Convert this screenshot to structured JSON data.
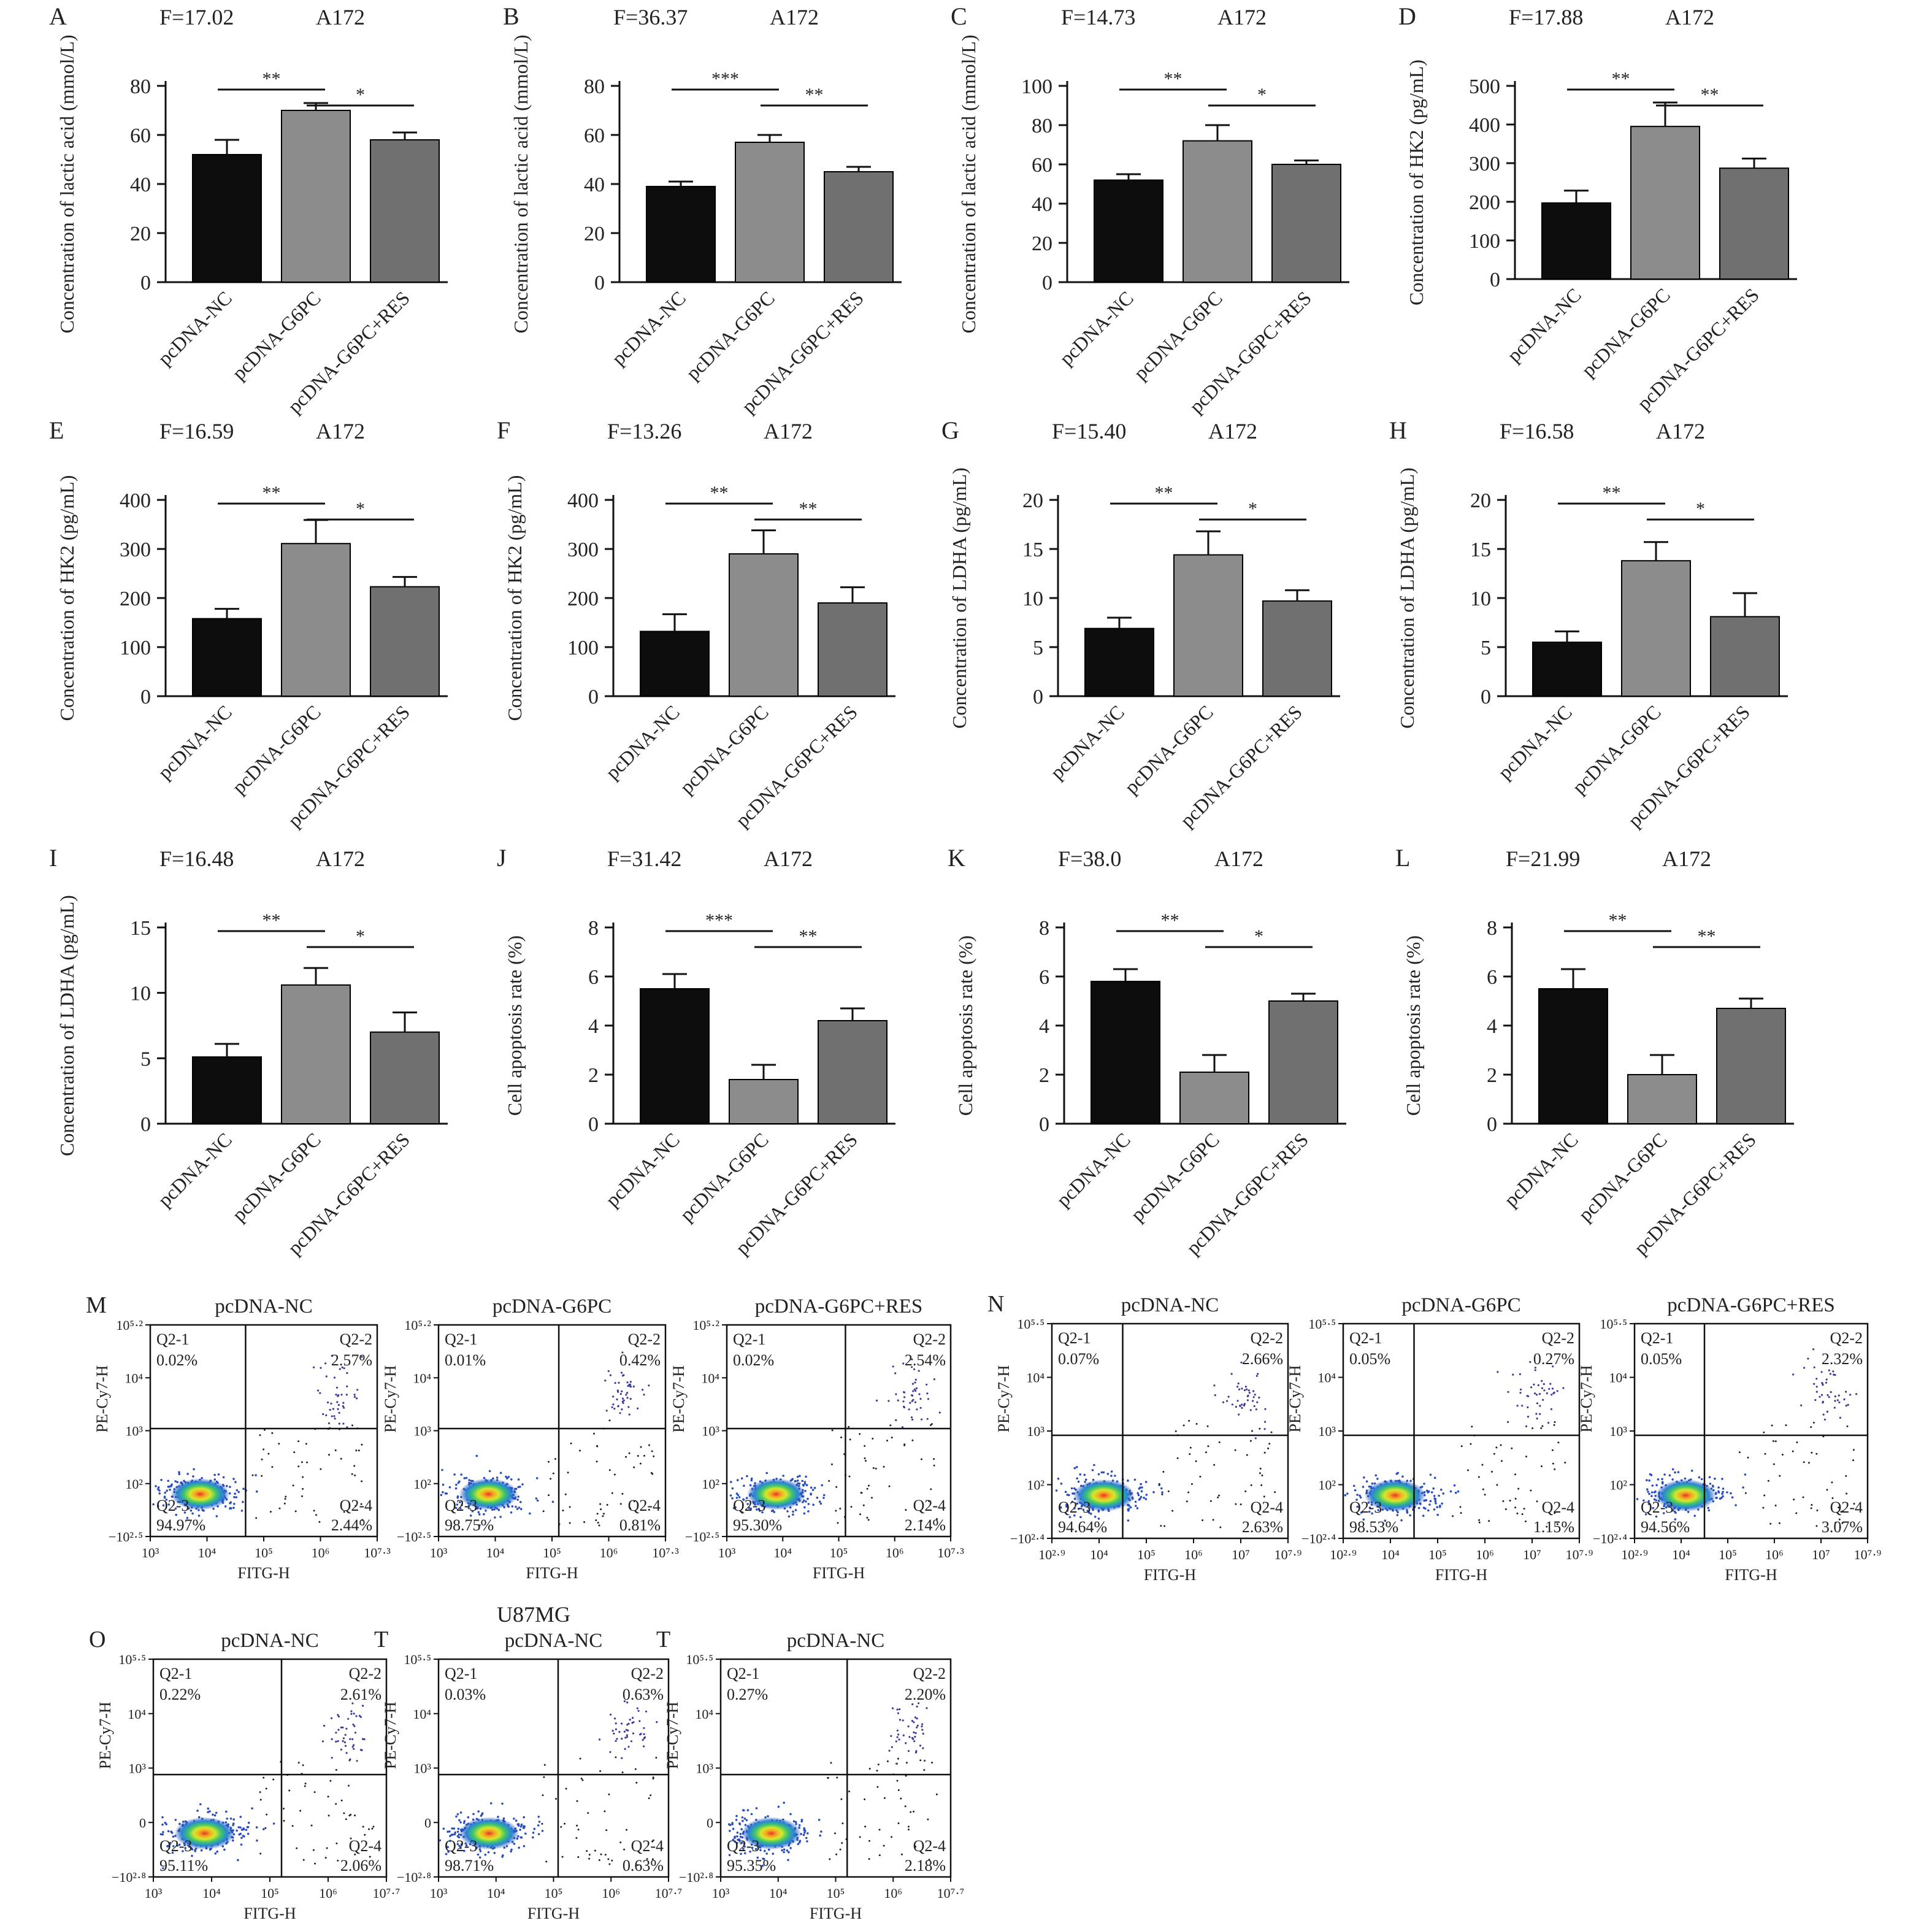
{
  "figure_labels": {
    "u87_title": "U87MG"
  },
  "bar_panels": [
    {
      "letter": "A",
      "stat": "F=17.02",
      "cell": "A172",
      "ylabel": "Concentration of lactic acid (mmol/L)",
      "yticks": [
        0,
        20,
        40,
        60,
        80
      ],
      "ylim": [
        0,
        80
      ],
      "categories": [
        "pcDNA-NC",
        "pcDNA-G6PC",
        "pcDNA-G6PC+RES"
      ],
      "values": [
        52,
        70,
        58
      ],
      "errors": [
        6,
        3,
        3
      ],
      "sig": [
        {
          "from": 0,
          "to": 1,
          "label": "**"
        },
        {
          "from": 1,
          "to": 2,
          "label": "*"
        }
      ]
    },
    {
      "letter": "B",
      "stat": "F=36.37",
      "cell": "A172",
      "ylabel": "Concentration of lactic acid (mmol/L)",
      "yticks": [
        0,
        20,
        40,
        60,
        80
      ],
      "ylim": [
        0,
        80
      ],
      "categories": [
        "pcDNA-NC",
        "pcDNA-G6PC",
        "pcDNA-G6PC+RES"
      ],
      "values": [
        39,
        57,
        45
      ],
      "errors": [
        2,
        3,
        2
      ],
      "sig": [
        {
          "from": 0,
          "to": 1,
          "label": "***"
        },
        {
          "from": 1,
          "to": 2,
          "label": "**"
        }
      ]
    },
    {
      "letter": "C",
      "stat": "F=14.73",
      "cell": "A172",
      "ylabel": "Concentration of lactic acid (mmol/L)",
      "yticks": [
        0,
        20,
        40,
        60,
        80,
        100
      ],
      "ylim": [
        0,
        100
      ],
      "categories": [
        "pcDNA-NC",
        "pcDNA-G6PC",
        "pcDNA-G6PC+RES"
      ],
      "values": [
        52,
        72,
        60
      ],
      "errors": [
        3,
        8,
        2
      ],
      "sig": [
        {
          "from": 0,
          "to": 1,
          "label": "**"
        },
        {
          "from": 1,
          "to": 2,
          "label": "*"
        }
      ]
    },
    {
      "letter": "D",
      "stat": "F=17.88",
      "cell": "A172",
      "ylabel": "Concentration of HK2 (pg/mL)",
      "yticks": [
        0,
        100,
        200,
        300,
        400,
        500
      ],
      "ylim": [
        0,
        500
      ],
      "categories": [
        "pcDNA-NC",
        "pcDNA-G6PC",
        "pcDNA-G6PC+RES"
      ],
      "values": [
        197,
        395,
        287
      ],
      "errors": [
        32,
        62,
        25
      ],
      "sig": [
        {
          "from": 0,
          "to": 1,
          "label": "**"
        },
        {
          "from": 1,
          "to": 2,
          "label": "**"
        }
      ]
    },
    {
      "letter": "E",
      "stat": "F=16.59",
      "cell": "A172",
      "ylabel": "Concentration of HK2 (pg/mL)",
      "yticks": [
        0,
        100,
        200,
        300,
        400
      ],
      "ylim": [
        0,
        400
      ],
      "categories": [
        "pcDNA-NC",
        "pcDNA-G6PC",
        "pcDNA-G6PC+RES"
      ],
      "values": [
        158,
        311,
        223
      ],
      "errors": [
        20,
        48,
        20
      ],
      "sig": [
        {
          "from": 0,
          "to": 1,
          "label": "**"
        },
        {
          "from": 1,
          "to": 2,
          "label": "*"
        }
      ]
    },
    {
      "letter": "F",
      "stat": "F=13.26",
      "cell": "A172",
      "ylabel": "Concentration of HK2 (pg/mL)",
      "yticks": [
        0,
        100,
        200,
        300,
        400
      ],
      "ylim": [
        0,
        400
      ],
      "categories": [
        "pcDNA-NC",
        "pcDNA-G6PC",
        "pcDNA-G6PC+RES"
      ],
      "values": [
        132,
        290,
        190
      ],
      "errors": [
        35,
        48,
        32
      ],
      "sig": [
        {
          "from": 0,
          "to": 1,
          "label": "**"
        },
        {
          "from": 1,
          "to": 2,
          "label": "**"
        }
      ]
    },
    {
      "letter": "G",
      "stat": "F=15.40",
      "cell": "A172",
      "ylabel": "Concentration of LDHA (pg/mL)",
      "yticks": [
        0,
        5,
        10,
        15,
        20
      ],
      "ylim": [
        0,
        20
      ],
      "categories": [
        "pcDNA-NC",
        "pcDNA-G6PC",
        "pcDNA-G6PC+RES"
      ],
      "values": [
        6.9,
        14.4,
        9.7
      ],
      "errors": [
        1.1,
        2.4,
        1.1
      ],
      "sig": [
        {
          "from": 0,
          "to": 1,
          "label": "**"
        },
        {
          "from": 1,
          "to": 2,
          "label": "*"
        }
      ]
    },
    {
      "letter": "H",
      "stat": "F=16.58",
      "cell": "A172",
      "ylabel": "Concentration of LDHA (pg/mL)",
      "yticks": [
        0,
        5,
        10,
        15,
        20
      ],
      "ylim": [
        0,
        20
      ],
      "categories": [
        "pcDNA-NC",
        "pcDNA-G6PC",
        "pcDNA-G6PC+RES"
      ],
      "values": [
        5.5,
        13.8,
        8.1
      ],
      "errors": [
        1.1,
        1.9,
        2.4
      ],
      "sig": [
        {
          "from": 0,
          "to": 1,
          "label": "**"
        },
        {
          "from": 1,
          "to": 2,
          "label": "*"
        }
      ]
    },
    {
      "letter": "I",
      "stat": "F=16.48",
      "cell": "A172",
      "ylabel": "Concentration of LDHA (pg/mL)",
      "yticks": [
        0,
        5,
        10,
        15
      ],
      "ylim": [
        0,
        15
      ],
      "categories": [
        "pcDNA-NC",
        "pcDNA-G6PC",
        "pcDNA-G6PC+RES"
      ],
      "values": [
        5.1,
        10.6,
        7.0
      ],
      "errors": [
        1.0,
        1.3,
        1.5
      ],
      "sig": [
        {
          "from": 0,
          "to": 1,
          "label": "**"
        },
        {
          "from": 1,
          "to": 2,
          "label": "*"
        }
      ]
    },
    {
      "letter": "J",
      "stat": "F=31.42",
      "cell": "A172",
      "ylabel": "Cell apoptosis rate (%)",
      "yticks": [
        0,
        2,
        4,
        6,
        8
      ],
      "ylim": [
        0,
        8
      ],
      "categories": [
        "pcDNA-NC",
        "pcDNA-G6PC",
        "pcDNA-G6PC+RES"
      ],
      "values": [
        5.5,
        1.8,
        4.2
      ],
      "errors": [
        0.6,
        0.6,
        0.5
      ],
      "sig": [
        {
          "from": 0,
          "to": 1,
          "label": "***"
        },
        {
          "from": 1,
          "to": 2,
          "label": "**"
        }
      ]
    },
    {
      "letter": "K",
      "stat": "F=38.0",
      "cell": "A172",
      "ylabel": "Cell apoptosis rate (%)",
      "yticks": [
        0,
        2,
        4,
        6,
        8
      ],
      "ylim": [
        0,
        8
      ],
      "categories": [
        "pcDNA-NC",
        "pcDNA-G6PC",
        "pcDNA-G6PC+RES"
      ],
      "values": [
        5.8,
        2.1,
        5.0
      ],
      "errors": [
        0.5,
        0.7,
        0.3
      ],
      "sig": [
        {
          "from": 0,
          "to": 1,
          "label": "**"
        },
        {
          "from": 1,
          "to": 2,
          "label": "*"
        }
      ]
    },
    {
      "letter": "L",
      "stat": "F=21.99",
      "cell": "A172",
      "ylabel": "Cell apoptosis rate (%)",
      "yticks": [
        0,
        2,
        4,
        6,
        8
      ],
      "ylim": [
        0,
        8
      ],
      "categories": [
        "pcDNA-NC",
        "pcDNA-G6PC",
        "pcDNA-G6PC+RES"
      ],
      "values": [
        5.5,
        2.0,
        4.7
      ],
      "errors": [
        0.8,
        0.8,
        0.4
      ],
      "sig": [
        {
          "from": 0,
          "to": 1,
          "label": "**"
        },
        {
          "from": 1,
          "to": 2,
          "label": "**"
        }
      ]
    }
  ],
  "flow_panels": [
    {
      "letter": "M",
      "title": "pcDNA-NC",
      "ylabel": "PE-Cy7-H",
      "xlabel": "FITG-H",
      "xticks": [
        "10³",
        "10⁴",
        "10⁵",
        "10⁶",
        "10⁷·³"
      ],
      "yticks": [
        "10⁵·²",
        "10⁴",
        "10³",
        "10²",
        "−10²·⁵"
      ],
      "quadrants": {
        "q1_label": "Q2-1",
        "q1": "0.02%",
        "q2_label": "Q2-2",
        "q2": "2.57%",
        "q3_label": "Q2-3",
        "q3": "94.97%",
        "q4_label": "Q2-4",
        "q4": "2.44%"
      }
    },
    {
      "letter": "",
      "title": "pcDNA-G6PC",
      "ylabel": "PE-Cy7-H",
      "xlabel": "FITG-H",
      "xticks": [
        "10³",
        "10⁴",
        "10⁵",
        "10⁶",
        "10⁷·³"
      ],
      "yticks": [
        "10⁵·²",
        "10⁴",
        "10³",
        "10²",
        "−10²·⁵"
      ],
      "quadrants": {
        "q1_label": "Q2-1",
        "q1": "0.01%",
        "q2_label": "Q2-2",
        "q2": "0.42%",
        "q3_label": "Q2-3",
        "q3": "98.75%",
        "q4_label": "Q2-4",
        "q4": "0.81%"
      }
    },
    {
      "letter": "",
      "title": "pcDNA-G6PC+RES",
      "ylabel": "PE-Cy7-H",
      "xlabel": "FITG-H",
      "xticks": [
        "10³",
        "10⁴",
        "10⁵",
        "10⁶",
        "10⁷·³"
      ],
      "yticks": [
        "10⁵·²",
        "10⁴",
        "10³",
        "10²",
        "−10²·⁵"
      ],
      "quadrants": {
        "q1_label": "Q2-1",
        "q1": "0.02%",
        "q2_label": "Q2-2",
        "q2": "2.54%",
        "q3_label": "Q2-3",
        "q3": "95.30%",
        "q4_label": "Q2-4",
        "q4": "2.14%"
      }
    },
    {
      "letter": "N",
      "title": "pcDNA-NC",
      "ylabel": "PE-Cy7-H",
      "xlabel": "FITG-H",
      "xticks": [
        "10²·⁹",
        "10⁴",
        "10⁵",
        "10⁶",
        "10⁷",
        "10⁷·⁹"
      ],
      "yticks": [
        "10⁵·⁵",
        "10⁴",
        "10³",
        "10²",
        "−10²·⁴"
      ],
      "quadrants": {
        "q1_label": "Q2-1",
        "q1": "0.07%",
        "q2_label": "Q2-2",
        "q2": "2.66%",
        "q3_label": "Q2-3",
        "q3": "94.64%",
        "q4_label": "Q2-4",
        "q4": "2.63%"
      }
    },
    {
      "letter": "",
      "title": "pcDNA-G6PC",
      "ylabel": "PE-Cy7-H",
      "xlabel": "FITG-H",
      "xticks": [
        "10²·⁹",
        "10⁴",
        "10⁵",
        "10⁶",
        "10⁷",
        "10⁷·⁹"
      ],
      "yticks": [
        "10⁵·⁵",
        "10⁴",
        "10³",
        "10²",
        "−10²·⁴"
      ],
      "quadrants": {
        "q1_label": "Q2-1",
        "q1": "0.05%",
        "q2_label": "Q2-2",
        "q2": "0.27%",
        "q3_label": "Q2-3",
        "q3": "98.53%",
        "q4_label": "Q2-4",
        "q4": "1.15%"
      }
    },
    {
      "letter": "",
      "title": "pcDNA-G6PC+RES",
      "ylabel": "PE-Cy7-H",
      "xlabel": "FITG-H",
      "xticks": [
        "10²·⁹",
        "10⁴",
        "10⁵",
        "10⁶",
        "10⁷",
        "10⁷·⁹"
      ],
      "yticks": [
        "10⁵·⁵",
        "10⁴",
        "10³",
        "10²",
        "−10²·⁴"
      ],
      "quadrants": {
        "q1_label": "Q2-1",
        "q1": "0.05%",
        "q2_label": "Q2-2",
        "q2": "2.32%",
        "q3_label": "Q2-3",
        "q3": "94.56%",
        "q4_label": "Q2-4",
        "q4": "3.07%"
      }
    },
    {
      "letter": "O",
      "title": "pcDNA-NC",
      "ylabel": "PE-Cy7-H",
      "xlabel": "FITG-H",
      "xticks": [
        "10³",
        "10⁴",
        "10⁵",
        "10⁶",
        "10⁷·⁷"
      ],
      "yticks": [
        "10⁵·⁵",
        "10⁴",
        "10³",
        "0",
        "−10²·⁸"
      ],
      "quadrants": {
        "q1_label": "Q2-1",
        "q1": "0.22%",
        "q2_label": "Q2-2",
        "q2": "2.61%",
        "q3_label": "Q2-3",
        "q3": "95.11%",
        "q4_label": "Q2-4",
        "q4": "2.06%"
      }
    },
    {
      "letter": "T",
      "title": "pcDNA-NC",
      "ylabel": "PE-Cy7-H",
      "xlabel": "FITG-H",
      "xticks": [
        "10³",
        "10⁴",
        "10⁵",
        "10⁶",
        "10⁷·⁷"
      ],
      "yticks": [
        "10⁵·⁵",
        "10⁴",
        "10³",
        "0",
        "−10²·⁸"
      ],
      "quadrants": {
        "q1_label": "Q2-1",
        "q1": "0.03%",
        "q2_label": "Q2-2",
        "q2": "0.63%",
        "q3_label": "Q2-3",
        "q3": "98.71%",
        "q4_label": "Q2-4",
        "q4": "0.63%"
      }
    },
    {
      "letter": "T",
      "title": "pcDNA-NC",
      "ylabel": "PE-Cy7-H",
      "xlabel": "FITG-H",
      "xticks": [
        "10³",
        "10⁴",
        "10⁵",
        "10⁶",
        "10⁷·⁷"
      ],
      "yticks": [
        "10⁵·⁵",
        "10⁴",
        "10³",
        "0",
        "−10²·⁸"
      ],
      "quadrants": {
        "q1_label": "Q2-1",
        "q1": "0.27%",
        "q2_label": "Q2-2",
        "q2": "2.20%",
        "q3_label": "Q2-3",
        "q3": "95.35%",
        "q4_label": "Q2-4",
        "q4": "2.18%"
      }
    }
  ],
  "chart_data": [
    {
      "type": "bar",
      "panel": "A",
      "ylabel": "Concentration of lactic acid (mmol/L)",
      "categories": [
        "pcDNA-NC",
        "pcDNA-G6PC",
        "pcDNA-G6PC+RES"
      ],
      "values": [
        52,
        70,
        58
      ],
      "ylim": [
        0,
        80
      ]
    },
    {
      "type": "bar",
      "panel": "B",
      "ylabel": "Concentration of lactic acid (mmol/L)",
      "categories": [
        "pcDNA-NC",
        "pcDNA-G6PC",
        "pcDNA-G6PC+RES"
      ],
      "values": [
        39,
        57,
        45
      ],
      "ylim": [
        0,
        80
      ]
    },
    {
      "type": "bar",
      "panel": "C",
      "ylabel": "Concentration of lactic acid (mmol/L)",
      "categories": [
        "pcDNA-NC",
        "pcDNA-G6PC",
        "pcDNA-G6PC+RES"
      ],
      "values": [
        52,
        72,
        60
      ],
      "ylim": [
        0,
        100
      ]
    },
    {
      "type": "bar",
      "panel": "D",
      "ylabel": "Concentration of HK2 (pg/mL)",
      "categories": [
        "pcDNA-NC",
        "pcDNA-G6PC",
        "pcDNA-G6PC+RES"
      ],
      "values": [
        197,
        395,
        287
      ],
      "ylim": [
        0,
        500
      ]
    },
    {
      "type": "bar",
      "panel": "E",
      "ylabel": "Concentration of HK2 (pg/mL)",
      "categories": [
        "pcDNA-NC",
        "pcDNA-G6PC",
        "pcDNA-G6PC+RES"
      ],
      "values": [
        158,
        311,
        223
      ],
      "ylim": [
        0,
        400
      ]
    },
    {
      "type": "bar",
      "panel": "F",
      "ylabel": "Concentration of HK2 (pg/mL)",
      "categories": [
        "pcDNA-NC",
        "pcDNA-G6PC",
        "pcDNA-G6PC+RES"
      ],
      "values": [
        132,
        290,
        190
      ],
      "ylim": [
        0,
        400
      ]
    },
    {
      "type": "bar",
      "panel": "G",
      "ylabel": "Concentration of LDHA (pg/mL)",
      "categories": [
        "pcDNA-NC",
        "pcDNA-G6PC",
        "pcDNA-G6PC+RES"
      ],
      "values": [
        6.9,
        14.4,
        9.7
      ],
      "ylim": [
        0,
        20
      ]
    },
    {
      "type": "bar",
      "panel": "H",
      "ylabel": "Concentration of LDHA (pg/mL)",
      "categories": [
        "pcDNA-NC",
        "pcDNA-G6PC",
        "pcDNA-G6PC+RES"
      ],
      "values": [
        5.5,
        13.8,
        8.1
      ],
      "ylim": [
        0,
        20
      ]
    },
    {
      "type": "bar",
      "panel": "I",
      "ylabel": "Concentration of LDHA (pg/mL)",
      "categories": [
        "pcDNA-NC",
        "pcDNA-G6PC",
        "pcDNA-G6PC+RES"
      ],
      "values": [
        5.1,
        10.6,
        7.0
      ],
      "ylim": [
        0,
        15
      ]
    },
    {
      "type": "bar",
      "panel": "J",
      "ylabel": "Cell apoptosis rate (%)",
      "categories": [
        "pcDNA-NC",
        "pcDNA-G6PC",
        "pcDNA-G6PC+RES"
      ],
      "values": [
        5.5,
        1.8,
        4.2
      ],
      "ylim": [
        0,
        8
      ]
    },
    {
      "type": "bar",
      "panel": "K",
      "ylabel": "Cell apoptosis rate (%)",
      "categories": [
        "pcDNA-NC",
        "pcDNA-G6PC",
        "pcDNA-G6PC+RES"
      ],
      "values": [
        5.8,
        2.1,
        5.0
      ],
      "ylim": [
        0,
        8
      ]
    },
    {
      "type": "bar",
      "panel": "L",
      "ylabel": "Cell apoptosis rate (%)",
      "categories": [
        "pcDNA-NC",
        "pcDNA-G6PC",
        "pcDNA-G6PC+RES"
      ],
      "values": [
        5.5,
        2.0,
        4.7
      ],
      "ylim": [
        0,
        8
      ]
    },
    {
      "type": "scatter",
      "panel": "M-1",
      "xlabel": "FITG-H",
      "ylabel": "PE-Cy7-H",
      "quadrant_percentages": {
        "Q2-1": 0.02,
        "Q2-2": 2.57,
        "Q2-3": 94.97,
        "Q2-4": 2.44
      }
    },
    {
      "type": "scatter",
      "panel": "M-2",
      "xlabel": "FITG-H",
      "ylabel": "PE-Cy7-H",
      "quadrant_percentages": {
        "Q2-1": 0.01,
        "Q2-2": 0.42,
        "Q2-3": 98.75,
        "Q2-4": 0.81
      }
    },
    {
      "type": "scatter",
      "panel": "M-3",
      "xlabel": "FITG-H",
      "ylabel": "PE-Cy7-H",
      "quadrant_percentages": {
        "Q2-1": 0.02,
        "Q2-2": 2.54,
        "Q2-3": 95.3,
        "Q2-4": 2.14
      }
    },
    {
      "type": "scatter",
      "panel": "N-1",
      "xlabel": "FITG-H",
      "ylabel": "PE-Cy7-H",
      "quadrant_percentages": {
        "Q2-1": 0.07,
        "Q2-2": 2.66,
        "Q2-3": 94.64,
        "Q2-4": 2.63
      }
    },
    {
      "type": "scatter",
      "panel": "N-2",
      "xlabel": "FITG-H",
      "ylabel": "PE-Cy7-H",
      "quadrant_percentages": {
        "Q2-1": 0.05,
        "Q2-2": 0.27,
        "Q2-3": 98.53,
        "Q2-4": 1.15
      }
    },
    {
      "type": "scatter",
      "panel": "N-3",
      "xlabel": "FITG-H",
      "ylabel": "PE-Cy7-H",
      "quadrant_percentages": {
        "Q2-1": 0.05,
        "Q2-2": 2.32,
        "Q2-3": 94.56,
        "Q2-4": 3.07
      }
    },
    {
      "type": "scatter",
      "panel": "O",
      "xlabel": "FITG-H",
      "ylabel": "PE-Cy7-H",
      "quadrant_percentages": {
        "Q2-1": 0.22,
        "Q2-2": 2.61,
        "Q2-3": 95.11,
        "Q2-4": 2.06
      }
    },
    {
      "type": "scatter",
      "panel": "T-1",
      "xlabel": "FITG-H",
      "ylabel": "PE-Cy7-H",
      "quadrant_percentages": {
        "Q2-1": 0.03,
        "Q2-2": 0.63,
        "Q2-3": 98.71,
        "Q2-4": 0.63
      }
    },
    {
      "type": "scatter",
      "panel": "T-2",
      "xlabel": "FITG-H",
      "ylabel": "PE-Cy7-H",
      "quadrant_percentages": {
        "Q2-1": 0.27,
        "Q2-2": 2.2,
        "Q2-3": 95.35,
        "Q2-4": 2.18
      }
    }
  ],
  "colors": {
    "bar_nc": "#0d0d0d",
    "bar_g6pc": "#8c8c8c",
    "bar_res": "#707070",
    "axis": "#111111"
  }
}
